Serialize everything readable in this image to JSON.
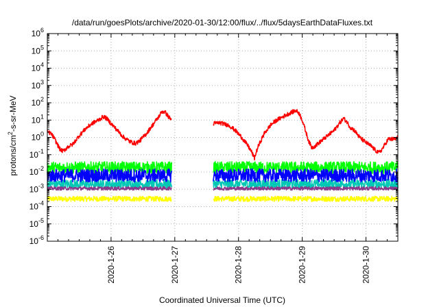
{
  "chart_data": {
    "type": "line",
    "title": "/data/run/goesPlots/archive/2020-01-30/12:00/flux/../flux/5daysEarthDataFluxes.txt",
    "xlabel": "Coordinated Universal Time (UTC)",
    "ylabel": {
      "prefix": "protons/cm",
      "sup": "2",
      "suffix": "-s-sr-MeV"
    },
    "y_scale": "log",
    "ylim_exp": [
      -6,
      6
    ],
    "y_ticks": [
      {
        "exp": -6,
        "base": "10",
        "sup": "-6"
      },
      {
        "exp": -5,
        "base": "10",
        "sup": "-5"
      },
      {
        "exp": -4,
        "base": "10",
        "sup": "-4"
      },
      {
        "exp": -3,
        "base": "10",
        "sup": "-3"
      },
      {
        "exp": -2,
        "base": "10",
        "sup": "-2"
      },
      {
        "exp": -1,
        "base": "10",
        "sup": "-1"
      },
      {
        "exp": 0,
        "base": "10",
        "sup": "0"
      },
      {
        "exp": 1,
        "base": "10",
        "sup": "1"
      },
      {
        "exp": 2,
        "base": "10",
        "sup": "2"
      },
      {
        "exp": 3,
        "base": "10",
        "sup": "3"
      },
      {
        "exp": 4,
        "base": "10",
        "sup": "4"
      },
      {
        "exp": 5,
        "base": "10",
        "sup": "5"
      },
      {
        "exp": 6,
        "base": "10",
        "sup": "6"
      }
    ],
    "x_unit": "day",
    "xlim": [
      25.0,
      30.5
    ],
    "x_ticks": [
      {
        "x": 26,
        "label": "2020-1-26"
      },
      {
        "x": 27,
        "label": "2020-1-27"
      },
      {
        "x": 28,
        "label": "2020-1-28"
      },
      {
        "x": 29,
        "label": "2020-1-29"
      },
      {
        "x": 30,
        "label": "2020-1-30"
      }
    ],
    "grid": true,
    "data_gaps": [
      [
        26.95,
        27.6
      ]
    ],
    "series": [
      {
        "color": "#ffff00",
        "level_exp": -3.55,
        "noise": 0.15
      },
      {
        "color": "#00c8b4",
        "level_exp": -2.7,
        "noise": 0.28
      },
      {
        "color": "#00ff00",
        "level_exp": -1.75,
        "noise": 0.35
      },
      {
        "color": "#0000ff",
        "level_exp": -2.2,
        "noise": 0.38
      },
      {
        "color": "#8b3a8b",
        "level_exp": -2.95,
        "noise": 0.1
      },
      {
        "color": "#ff0000",
        "noise": 0.12,
        "points": [
          [
            25.0,
            0.3
          ],
          [
            25.05,
            0.25
          ],
          [
            25.1,
            0.0
          ],
          [
            25.15,
            -0.35
          ],
          [
            25.2,
            -0.7
          ],
          [
            25.25,
            -0.8
          ],
          [
            25.32,
            -0.55
          ],
          [
            25.4,
            -0.4
          ],
          [
            25.5,
            0.1
          ],
          [
            25.6,
            0.5
          ],
          [
            25.7,
            0.8
          ],
          [
            25.8,
            1.0
          ],
          [
            25.88,
            1.2
          ],
          [
            25.93,
            1.1
          ],
          [
            26.0,
            0.8
          ],
          [
            26.1,
            0.4
          ],
          [
            26.2,
            0.0
          ],
          [
            26.3,
            -0.25
          ],
          [
            26.38,
            -0.35
          ],
          [
            26.45,
            -0.2
          ],
          [
            26.55,
            0.2
          ],
          [
            26.65,
            0.7
          ],
          [
            26.75,
            1.2
          ],
          [
            26.8,
            1.5
          ],
          [
            26.85,
            1.45
          ],
          [
            26.9,
            1.2
          ],
          [
            26.95,
            1.0
          ],
          [
            27.6,
            0.8
          ],
          [
            27.7,
            0.85
          ],
          [
            27.75,
            0.8
          ],
          [
            27.85,
            0.7
          ],
          [
            27.95,
            0.4
          ],
          [
            28.05,
            0.0
          ],
          [
            28.15,
            -0.5
          ],
          [
            28.2,
            -0.8
          ],
          [
            28.25,
            -1.2
          ],
          [
            28.3,
            -0.6
          ],
          [
            28.4,
            0.2
          ],
          [
            28.5,
            0.7
          ],
          [
            28.6,
            1.0
          ],
          [
            28.7,
            1.2
          ],
          [
            28.8,
            1.4
          ],
          [
            28.9,
            1.55
          ],
          [
            28.95,
            1.4
          ],
          [
            29.0,
            1.0
          ],
          [
            29.05,
            0.4
          ],
          [
            29.1,
            -0.2
          ],
          [
            29.15,
            -0.6
          ],
          [
            29.2,
            -0.5
          ],
          [
            29.3,
            -0.2
          ],
          [
            29.4,
            0.1
          ],
          [
            29.5,
            0.4
          ],
          [
            29.6,
            0.9
          ],
          [
            29.65,
            1.1
          ],
          [
            29.7,
            0.9
          ],
          [
            29.75,
            0.6
          ],
          [
            29.82,
            0.4
          ],
          [
            29.9,
            0.0
          ],
          [
            30.0,
            -0.3
          ],
          [
            30.08,
            -0.5
          ],
          [
            30.15,
            -0.75
          ],
          [
            30.2,
            -0.9
          ],
          [
            30.25,
            -0.7
          ],
          [
            30.3,
            -0.4
          ],
          [
            30.35,
            -0.1
          ],
          [
            30.45,
            -0.1
          ],
          [
            30.5,
            0.0
          ]
        ]
      }
    ]
  }
}
